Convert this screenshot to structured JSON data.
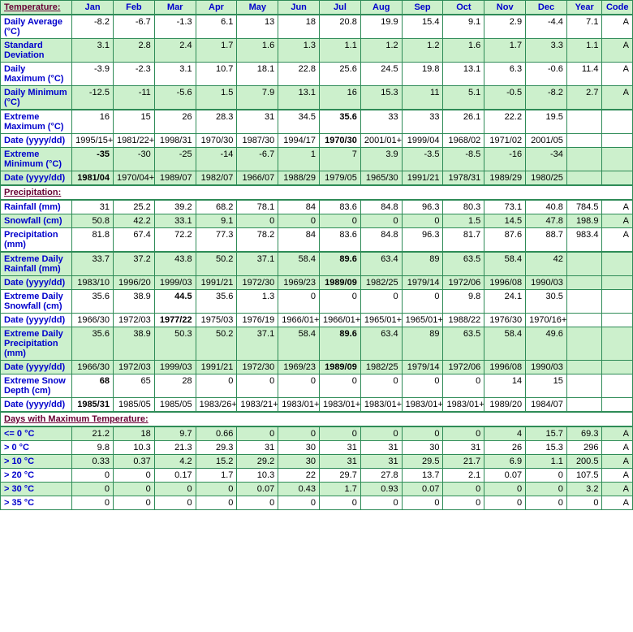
{
  "columns": [
    "Jan",
    "Feb",
    "Mar",
    "Apr",
    "May",
    "Jun",
    "Jul",
    "Aug",
    "Sep",
    "Oct",
    "Nov",
    "Dec",
    "Year",
    "Code"
  ],
  "sections": [
    {
      "title": "Temperature:",
      "rows": [
        {
          "class": "white",
          "label": "Daily Average (°C)",
          "cells": [
            "-8.2",
            "-6.7",
            "-1.3",
            "6.1",
            "13",
            "18",
            "20.8",
            "19.9",
            "15.4",
            "9.1",
            "2.9",
            "-4.4",
            "7.1",
            "A"
          ]
        },
        {
          "class": "green",
          "label": "Standard Deviation",
          "cells": [
            "3.1",
            "2.8",
            "2.4",
            "1.7",
            "1.6",
            "1.3",
            "1.1",
            "1.2",
            "1.2",
            "1.6",
            "1.7",
            "3.3",
            "1.1",
            "A"
          ]
        },
        {
          "class": "white",
          "label": "Daily Maximum (°C)",
          "cells": [
            "-3.9",
            "-2.3",
            "3.1",
            "10.7",
            "18.1",
            "22.8",
            "25.6",
            "24.5",
            "19.8",
            "13.1",
            "6.3",
            "-0.6",
            "11.4",
            "A"
          ]
        },
        {
          "class": "green thickbottom",
          "label": "Daily Minimum (°C)",
          "cells": [
            "-12.5",
            "-11",
            "-5.6",
            "1.5",
            "7.9",
            "13.1",
            "16",
            "15.3",
            "11",
            "5.1",
            "-0.5",
            "-8.2",
            "2.7",
            "A"
          ]
        },
        {
          "class": "white",
          "label": "Extreme Maximum (°C)",
          "cells": [
            "16",
            "15",
            "26",
            "28.3",
            "31",
            "34.5",
            "35.6",
            "33",
            "33",
            "26.1",
            "22.2",
            "19.5",
            "",
            ""
          ],
          "bold": [
            6
          ]
        },
        {
          "class": "white",
          "label": "Date (yyyy/dd)",
          "cells": [
            "1995/15+",
            "1981/22+",
            "1998/31",
            "1970/30",
            "1987/30",
            "1994/17",
            "1970/30",
            "2001/01+",
            "1999/04",
            "1968/02",
            "1971/02",
            "2001/05",
            "",
            ""
          ],
          "bold": [
            6
          ]
        },
        {
          "class": "green",
          "label": "Extreme Minimum (°C)",
          "cells": [
            "-35",
            "-30",
            "-25",
            "-14",
            "-6.7",
            "1",
            "7",
            "3.9",
            "-3.5",
            "-8.5",
            "-16",
            "-34",
            "",
            ""
          ],
          "bold": [
            0
          ]
        },
        {
          "class": "green thickbottom",
          "label": "Date (yyyy/dd)",
          "cells": [
            "1981/04",
            "1970/04+",
            "1989/07",
            "1982/07",
            "1966/07",
            "1988/29",
            "1979/05",
            "1965/30",
            "1991/21",
            "1978/31",
            "1989/29",
            "1980/25",
            "",
            ""
          ],
          "bold": [
            0
          ]
        }
      ]
    },
    {
      "title": "Precipitation:",
      "rows": [
        {
          "class": "white",
          "label": "Rainfall (mm)",
          "cells": [
            "31",
            "25.2",
            "39.2",
            "68.2",
            "78.1",
            "84",
            "83.6",
            "84.8",
            "96.3",
            "80.3",
            "73.1",
            "40.8",
            "784.5",
            "A"
          ]
        },
        {
          "class": "green",
          "label": "Snowfall (cm)",
          "cells": [
            "50.8",
            "42.2",
            "33.1",
            "9.1",
            "0",
            "0",
            "0",
            "0",
            "0",
            "1.5",
            "14.5",
            "47.8",
            "198.9",
            "A"
          ]
        },
        {
          "class": "white thickbottom",
          "label": "Precipitation (mm)",
          "cells": [
            "81.8",
            "67.4",
            "72.2",
            "77.3",
            "78.2",
            "84",
            "83.6",
            "84.8",
            "96.3",
            "81.7",
            "87.6",
            "88.7",
            "983.4",
            "A"
          ]
        },
        {
          "class": "green",
          "label": "Extreme Daily Rainfall (mm)",
          "cells": [
            "33.7",
            "37.2",
            "43.8",
            "50.2",
            "37.1",
            "58.4",
            "89.6",
            "63.4",
            "89",
            "63.5",
            "58.4",
            "42",
            "",
            ""
          ],
          "bold": [
            6
          ]
        },
        {
          "class": "green",
          "label": "Date (yyyy/dd)",
          "cells": [
            "1983/10",
            "1996/20",
            "1999/03",
            "1991/21",
            "1972/30",
            "1969/23",
            "1989/09",
            "1982/25",
            "1979/14",
            "1972/06",
            "1996/08",
            "1990/03",
            "",
            ""
          ],
          "bold": [
            6
          ]
        },
        {
          "class": "white",
          "label": "Extreme Daily Snowfall (cm)",
          "cells": [
            "35.6",
            "38.9",
            "44.5",
            "35.6",
            "1.3",
            "0",
            "0",
            "0",
            "0",
            "9.8",
            "24.1",
            "30.5",
            "",
            ""
          ],
          "bold": [
            2
          ]
        },
        {
          "class": "white",
          "label": "Date (yyyy/dd)",
          "cells": [
            "1966/30",
            "1972/03",
            "1977/22",
            "1975/03",
            "1976/19",
            "1966/01+",
            "1966/01+",
            "1965/01+",
            "1965/01+",
            "1988/22",
            "1976/30",
            "1970/16+",
            "",
            ""
          ],
          "bold": [
            2
          ]
        },
        {
          "class": "green",
          "label": "Extreme Daily Precipitation (mm)",
          "cells": [
            "35.6",
            "38.9",
            "50.3",
            "50.2",
            "37.1",
            "58.4",
            "89.6",
            "63.4",
            "89",
            "63.5",
            "58.4",
            "49.6",
            "",
            ""
          ],
          "bold": [
            6
          ]
        },
        {
          "class": "green",
          "label": "Date (yyyy/dd)",
          "cells": [
            "1966/30",
            "1972/03",
            "1999/03",
            "1991/21",
            "1972/30",
            "1969/23",
            "1989/09",
            "1982/25",
            "1979/14",
            "1972/06",
            "1996/08",
            "1990/03",
            "",
            ""
          ],
          "bold": [
            6
          ]
        },
        {
          "class": "white",
          "label": "Extreme Snow Depth (cm)",
          "cells": [
            "68",
            "65",
            "28",
            "0",
            "0",
            "0",
            "0",
            "0",
            "0",
            "0",
            "14",
            "15",
            "",
            ""
          ],
          "bold": [
            0
          ]
        },
        {
          "class": "white thickbottom",
          "label": "Date (yyyy/dd)",
          "cells": [
            "1985/31",
            "1985/05",
            "1985/05",
            "1983/26+",
            "1983/21+",
            "1983/01+",
            "1983/01+",
            "1983/01+",
            "1983/01+",
            "1983/01+",
            "1989/20",
            "1984/07",
            "",
            ""
          ],
          "bold": [
            0
          ]
        }
      ]
    },
    {
      "title": "Days with Maximum Temperature:",
      "rows": [
        {
          "class": "green",
          "label": "<= 0 °C",
          "cells": [
            "21.2",
            "18",
            "9.7",
            "0.66",
            "0",
            "0",
            "0",
            "0",
            "0",
            "0",
            "4",
            "15.7",
            "69.3",
            "A"
          ]
        },
        {
          "class": "white",
          "label": "> 0 °C",
          "cells": [
            "9.8",
            "10.3",
            "21.3",
            "29.3",
            "31",
            "30",
            "31",
            "31",
            "30",
            "31",
            "26",
            "15.3",
            "296",
            "A"
          ]
        },
        {
          "class": "green",
          "label": "> 10 °C",
          "cells": [
            "0.33",
            "0.37",
            "4.2",
            "15.2",
            "29.2",
            "30",
            "31",
            "31",
            "29.5",
            "21.7",
            "6.9",
            "1.1",
            "200.5",
            "A"
          ]
        },
        {
          "class": "white",
          "label": "> 20 °C",
          "cells": [
            "0",
            "0",
            "0.17",
            "1.7",
            "10.3",
            "22",
            "29.7",
            "27.8",
            "13.7",
            "2.1",
            "0.07",
            "0",
            "107.5",
            "A"
          ]
        },
        {
          "class": "green",
          "label": "> 30 °C",
          "cells": [
            "0",
            "0",
            "0",
            "0",
            "0.07",
            "0.43",
            "1.7",
            "0.93",
            "0.07",
            "0",
            "0",
            "0",
            "3.2",
            "A"
          ]
        },
        {
          "class": "white",
          "label": "> 35 °C",
          "cells": [
            "0",
            "0",
            "0",
            "0",
            "0",
            "0",
            "0",
            "0",
            "0",
            "0",
            "0",
            "0",
            "0",
            "A"
          ]
        }
      ]
    }
  ]
}
